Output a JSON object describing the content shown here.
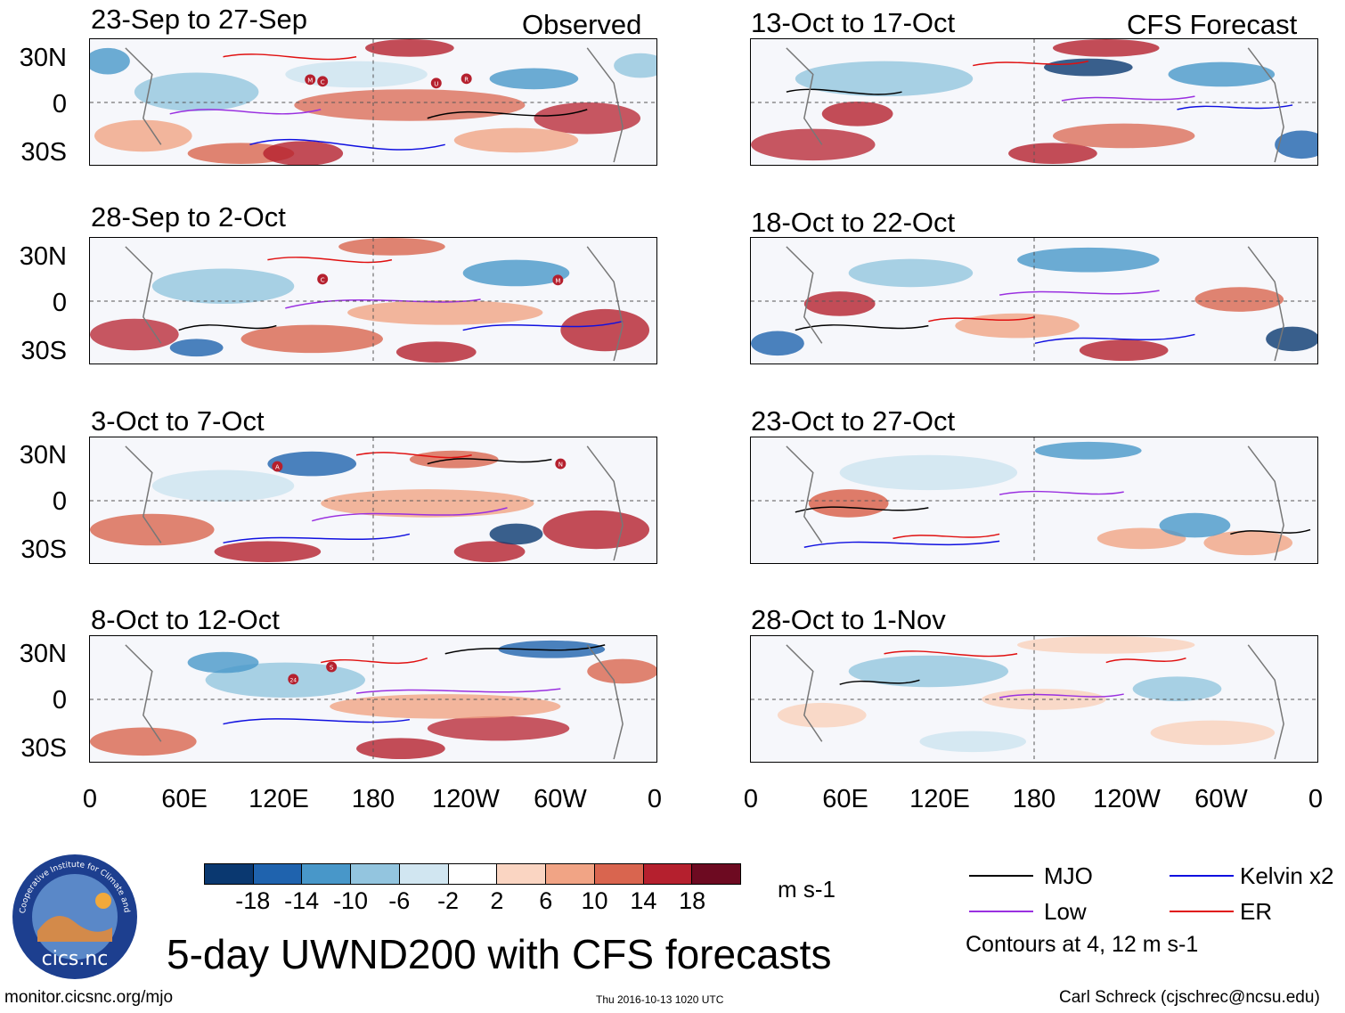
{
  "panels": {
    "observed": [
      {
        "title": "23-Sep to 27-Sep",
        "corner_label": "Observed"
      },
      {
        "title": "28-Sep to 2-Oct",
        "corner_label": ""
      },
      {
        "title": "3-Oct to 7-Oct",
        "corner_label": ""
      },
      {
        "title": "8-Oct to 12-Oct",
        "corner_label": ""
      }
    ],
    "forecast": [
      {
        "title": "13-Oct to 17-Oct",
        "corner_label": "CFS Forecast"
      },
      {
        "title": "18-Oct to 22-Oct",
        "corner_label": ""
      },
      {
        "title": "23-Oct to 27-Oct",
        "corner_label": ""
      },
      {
        "title": "28-Oct to 1-Nov",
        "corner_label": ""
      }
    ]
  },
  "latitude_labels": [
    "30N",
    "0",
    "30S"
  ],
  "longitude_labels": [
    "0",
    "60E",
    "120E",
    "180",
    "120W",
    "60W",
    "0"
  ],
  "storm_markers": {
    "observed_0": [
      "M",
      "C",
      "U",
      "R"
    ],
    "observed_1": [
      "C",
      "M"
    ],
    "observed_2": [
      "A",
      "N"
    ],
    "observed_3": [
      "24",
      "S"
    ]
  },
  "colorbar": {
    "colors": [
      "#0a3870",
      "#1f63ae",
      "#4897c9",
      "#93c5df",
      "#d1e6f1",
      "#ffffff",
      "#fad5c2",
      "#f1a485",
      "#d9654f",
      "#b5202e",
      "#6d0a21"
    ],
    "labels": [
      "-18",
      "-14",
      "-10",
      "-6",
      "-2",
      "2",
      "6",
      "10",
      "14",
      "18"
    ],
    "units": "m s-1"
  },
  "legend": {
    "items": [
      {
        "label": "MJO",
        "color": "#000000"
      },
      {
        "label": "Kelvin x2",
        "color": "#1010e0"
      },
      {
        "label": "Low",
        "color": "#9a30e0"
      },
      {
        "label": "ER",
        "color": "#e01010"
      }
    ],
    "note": "Contours at 4, 12 m s-1"
  },
  "logo": {
    "ring_text": "Cooperative Institute for Climate and Satellites",
    "name": "cics.nc"
  },
  "main_title": "5-day UWND200 with CFS forecasts",
  "footer": {
    "left": "monitor.cicsnc.org/mjo",
    "center": "Thu 2016-10-13 1020 UTC",
    "right": "Carl Schreck (cjschrec@ncsu.edu)"
  }
}
